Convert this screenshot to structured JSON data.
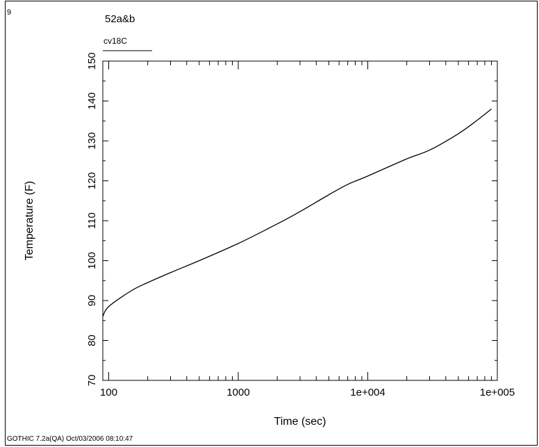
{
  "figure_number": "9",
  "footer": "GOTHIC 7.2a(QA) Oct/03/2006 08:10:47",
  "chart_data": {
    "type": "line",
    "title": "52a&b",
    "xlabel": "Time (sec)",
    "ylabel": "Temperature (F)",
    "x_scale": "log",
    "xlim": [
      90,
      100000
    ],
    "ylim": [
      70,
      150
    ],
    "x_tick_labels": [
      "100",
      "1000",
      "1e+004",
      "1e+005"
    ],
    "y_tick_labels": [
      "70",
      "80",
      "90",
      "100",
      "110",
      "120",
      "130",
      "140",
      "150"
    ],
    "series": [
      {
        "name": "cv18C",
        "color": "#000000",
        "x": [
          90,
          100,
          150,
          200,
          300,
          500,
          1000,
          2000,
          3000,
          5000,
          7000,
          10000,
          20000,
          30000,
          50000,
          70000,
          90000
        ],
        "y": [
          86,
          88.5,
          92.5,
          94.5,
          97,
          100,
          104.3,
          109.2,
          112.3,
          116.5,
          119.1,
          121.2,
          125.5,
          127.7,
          131.8,
          135.2,
          138
        ]
      }
    ]
  }
}
